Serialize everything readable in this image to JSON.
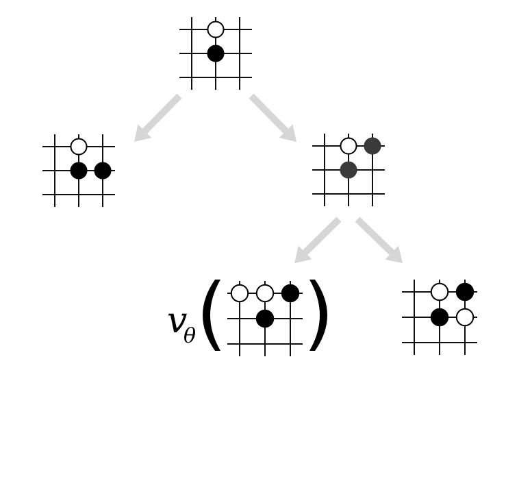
{
  "value_function": {
    "symbol": "v",
    "subscript": "θ"
  },
  "colors": {
    "line": "#111111",
    "black_stone": "#000000",
    "grey_stone": "#3a3a3a",
    "white_stone": "#ffffff",
    "arrow": "#d6d6d6"
  },
  "boards": [
    {
      "id": "root",
      "stones": [
        {
          "row": 0,
          "col": 1,
          "color": "white"
        },
        {
          "row": 1,
          "col": 1,
          "color": "black"
        }
      ]
    },
    {
      "id": "child-left",
      "stones": [
        {
          "row": 0,
          "col": 1,
          "color": "white"
        },
        {
          "row": 1,
          "col": 1,
          "color": "black"
        },
        {
          "row": 1,
          "col": 2,
          "color": "black"
        }
      ]
    },
    {
      "id": "child-right",
      "stones": [
        {
          "row": 0,
          "col": 1,
          "color": "white"
        },
        {
          "row": 0,
          "col": 2,
          "color": "grey"
        },
        {
          "row": 1,
          "col": 1,
          "color": "grey"
        }
      ]
    },
    {
      "id": "grandchild-left",
      "stones": [
        {
          "row": 0,
          "col": 0,
          "color": "white"
        },
        {
          "row": 0,
          "col": 1,
          "color": "white"
        },
        {
          "row": 0,
          "col": 2,
          "color": "black"
        },
        {
          "row": 1,
          "col": 1,
          "color": "black"
        }
      ]
    },
    {
      "id": "grandchild-right",
      "stones": [
        {
          "row": 0,
          "col": 1,
          "color": "white"
        },
        {
          "row": 0,
          "col": 2,
          "color": "black"
        },
        {
          "row": 1,
          "col": 1,
          "color": "black"
        },
        {
          "row": 1,
          "col": 2,
          "color": "white"
        }
      ]
    }
  ]
}
